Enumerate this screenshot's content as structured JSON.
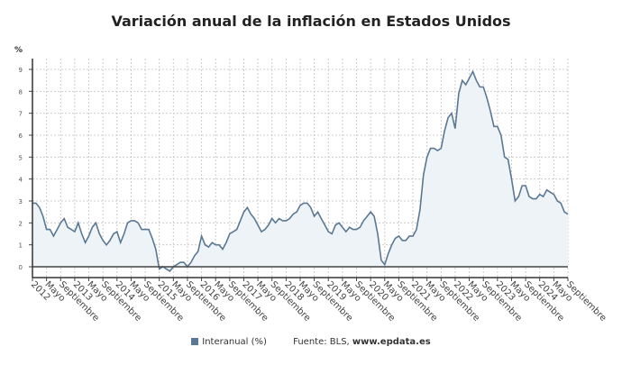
{
  "chart_data": {
    "type": "area",
    "title": "Variación anual de la inflación en Estados Unidos",
    "ylabel": "%",
    "xlabel": "",
    "ylim": [
      0,
      9
    ],
    "y_ticks": [
      0,
      1,
      2,
      3,
      4,
      5,
      6,
      7,
      8,
      9
    ],
    "grid": true,
    "legend_position": "bottom",
    "x_start": "2012-01",
    "x_frequency": "monthly",
    "x_labels": [
      "2012",
      "Mayo",
      "Septiembre",
      "2013",
      "Mayo",
      "Septiembre",
      "2014",
      "Mayo",
      "Septiembre",
      "2015",
      "Mayo",
      "Septiembre",
      "2016",
      "Mayo",
      "Septiembre",
      "2017",
      "Mayo",
      "Septiembre",
      "2018",
      "Mayo",
      "Septiembre",
      "2019",
      "Mayo",
      "Septiembre",
      "2020",
      "Mayo",
      "Septiembre",
      "2021",
      "Mayo",
      "Septiembre",
      "2022",
      "Mayo",
      "Septiembre",
      "2023",
      "Mayo",
      "Septiembre",
      "2024",
      "Mayo",
      "Septiembre"
    ],
    "series": [
      {
        "name": "Interanual (%)",
        "color": "#5a7893",
        "values": [
          2.9,
          2.9,
          2.7,
          2.3,
          1.7,
          1.7,
          1.4,
          1.7,
          2.0,
          2.2,
          1.8,
          1.7,
          1.6,
          2.0,
          1.5,
          1.1,
          1.4,
          1.8,
          2.0,
          1.5,
          1.2,
          1.0,
          1.2,
          1.5,
          1.6,
          1.1,
          1.5,
          2.0,
          2.1,
          2.1,
          2.0,
          1.7,
          1.7,
          1.7,
          1.3,
          0.8,
          -0.1,
          0.0,
          -0.1,
          -0.2,
          0.0,
          0.1,
          0.2,
          0.2,
          0.0,
          0.2,
          0.5,
          0.7,
          1.4,
          1.0,
          0.9,
          1.1,
          1.0,
          1.0,
          0.8,
          1.1,
          1.5,
          1.6,
          1.7,
          2.1,
          2.5,
          2.7,
          2.4,
          2.2,
          1.9,
          1.6,
          1.7,
          1.9,
          2.2,
          2.0,
          2.2,
          2.1,
          2.1,
          2.2,
          2.4,
          2.5,
          2.8,
          2.9,
          2.9,
          2.7,
          2.3,
          2.5,
          2.2,
          1.9,
          1.6,
          1.5,
          1.9,
          2.0,
          1.8,
          1.6,
          1.8,
          1.7,
          1.7,
          1.8,
          2.1,
          2.3,
          2.5,
          2.3,
          1.5,
          0.3,
          0.1,
          0.6,
          1.0,
          1.3,
          1.4,
          1.2,
          1.2,
          1.4,
          1.4,
          1.7,
          2.6,
          4.2,
          5.0,
          5.4,
          5.4,
          5.3,
          5.4,
          6.2,
          6.8,
          7.0,
          6.3,
          7.9,
          8.5,
          8.3,
          8.6,
          8.9,
          8.5,
          8.2,
          8.2,
          7.7,
          7.1,
          6.4,
          6.4,
          6.0,
          5.0,
          4.9,
          4.0,
          3.0,
          3.2,
          3.7,
          3.7,
          3.2,
          3.1,
          3.1,
          3.3,
          3.2,
          3.5,
          3.4,
          3.3,
          3.0,
          2.9,
          2.5,
          2.4
        ]
      }
    ]
  },
  "legend": {
    "label": "Interanual (%)",
    "source_prefix": "Fuente: BLS, ",
    "source_site": "www.epdata.es"
  }
}
